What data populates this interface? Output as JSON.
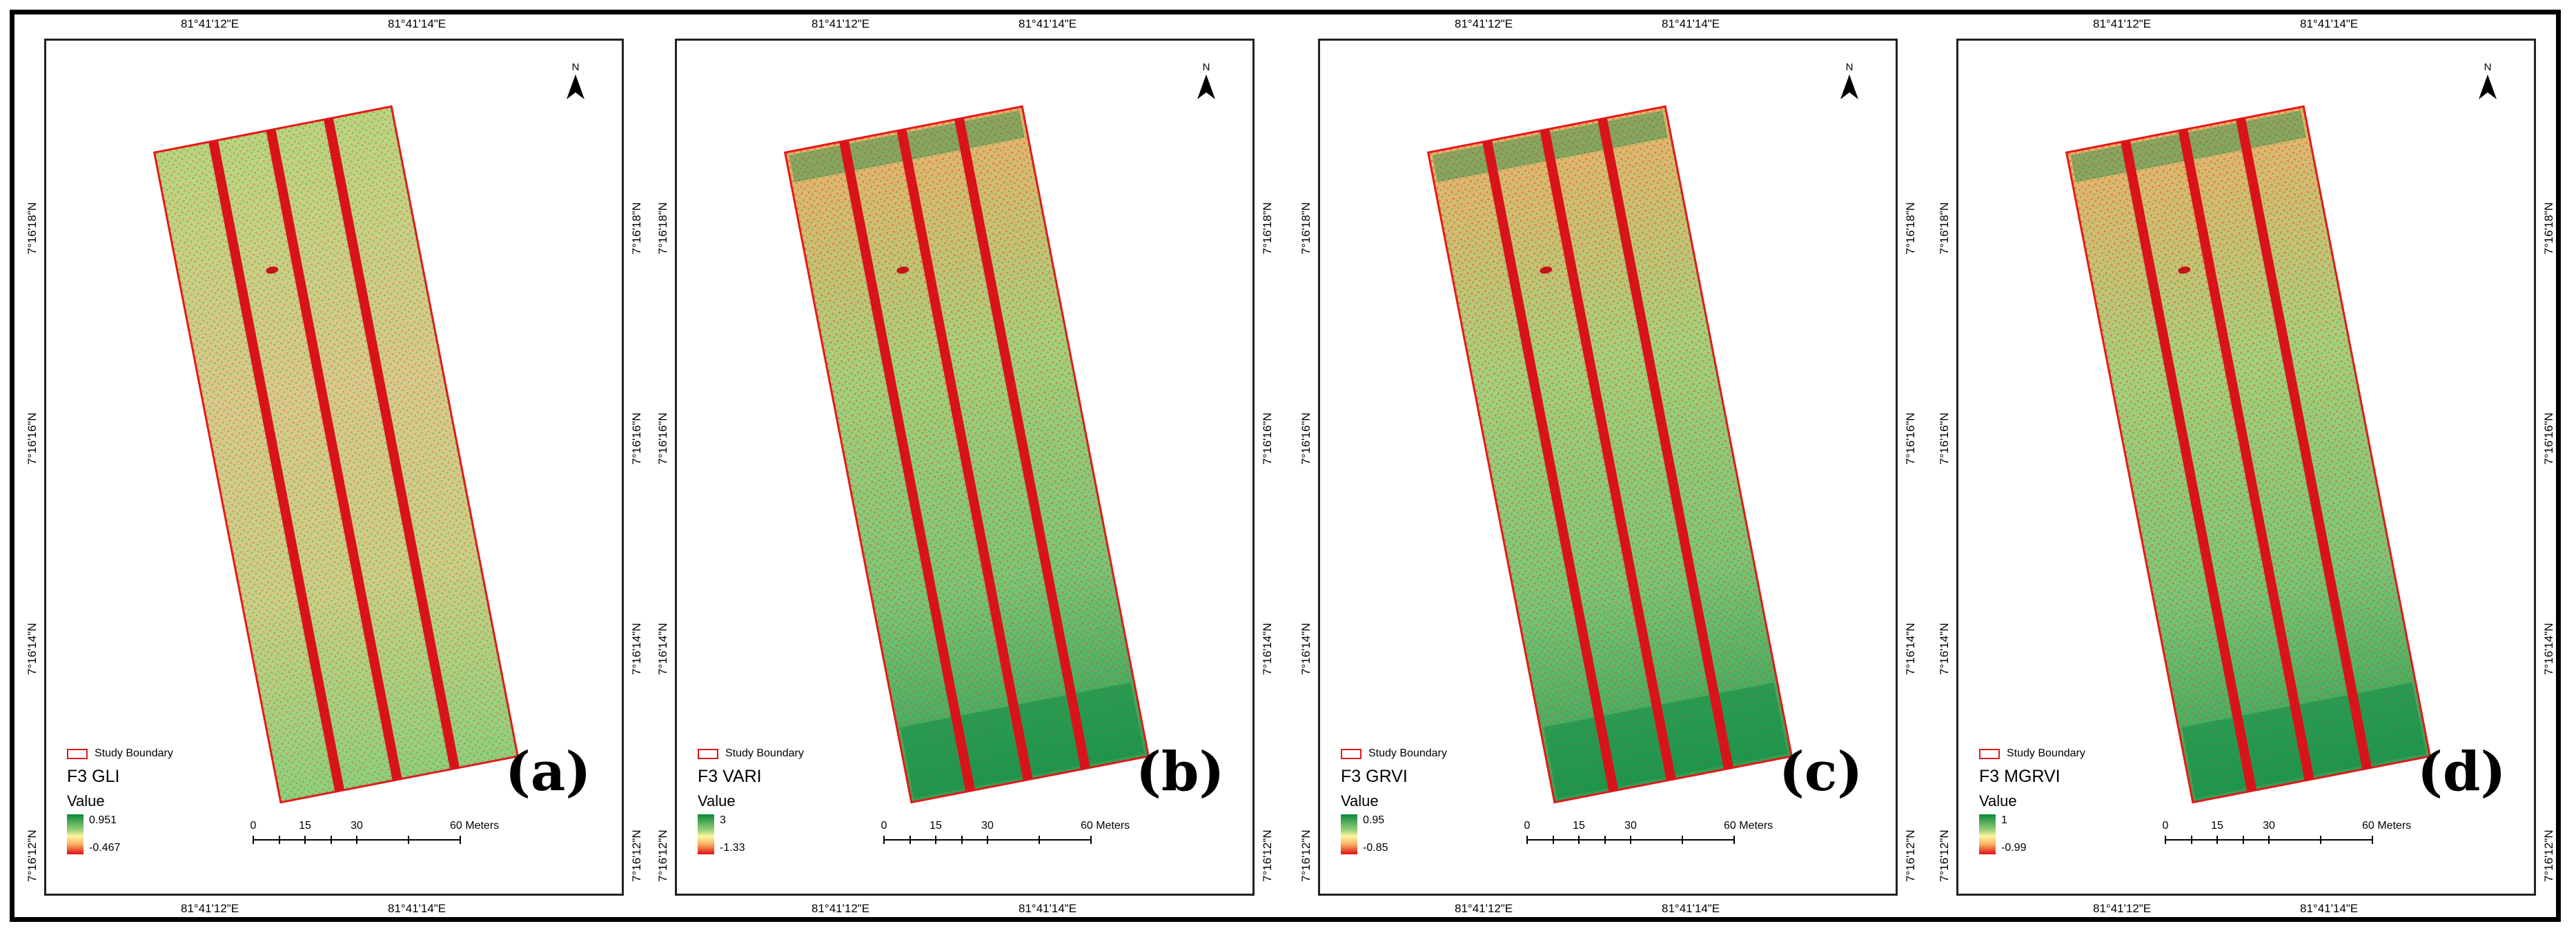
{
  "panels": [
    {
      "id": "a",
      "letter": "(a)",
      "index_name": "F3 GLI",
      "max": "0.951",
      "min": "-0.467",
      "scheme": "gli"
    },
    {
      "id": "b",
      "letter": "(b)",
      "index_name": "F3 VARI",
      "max": "3",
      "min": "-1.33",
      "scheme": "vari"
    },
    {
      "id": "c",
      "letter": "(c)",
      "index_name": "F3 GRVI",
      "max": "0.95",
      "min": "-0.85",
      "scheme": "grvi"
    },
    {
      "id": "d",
      "letter": "(d)",
      "index_name": "F3 MGRVI",
      "max": "1",
      "min": "-0.99",
      "scheme": "mgrvi"
    }
  ],
  "legend": {
    "boundary_label": "Study Boundary",
    "value_title": "Value"
  },
  "scale": {
    "ticks": [
      "0",
      "15",
      "30",
      "60 Meters"
    ]
  },
  "graticule": {
    "lon": [
      "81°41'12\"E",
      "81°41'14\"E"
    ],
    "lat": [
      "7°16'18\"N",
      "7°16'16\"N",
      "7°16'14\"N",
      "7°16'12\"N"
    ]
  },
  "north_label": "N",
  "colors": {
    "boundary": "#e21a1a",
    "high": "#0a8a3a",
    "mid": "#f6e9a2",
    "low": "#e20f14"
  }
}
